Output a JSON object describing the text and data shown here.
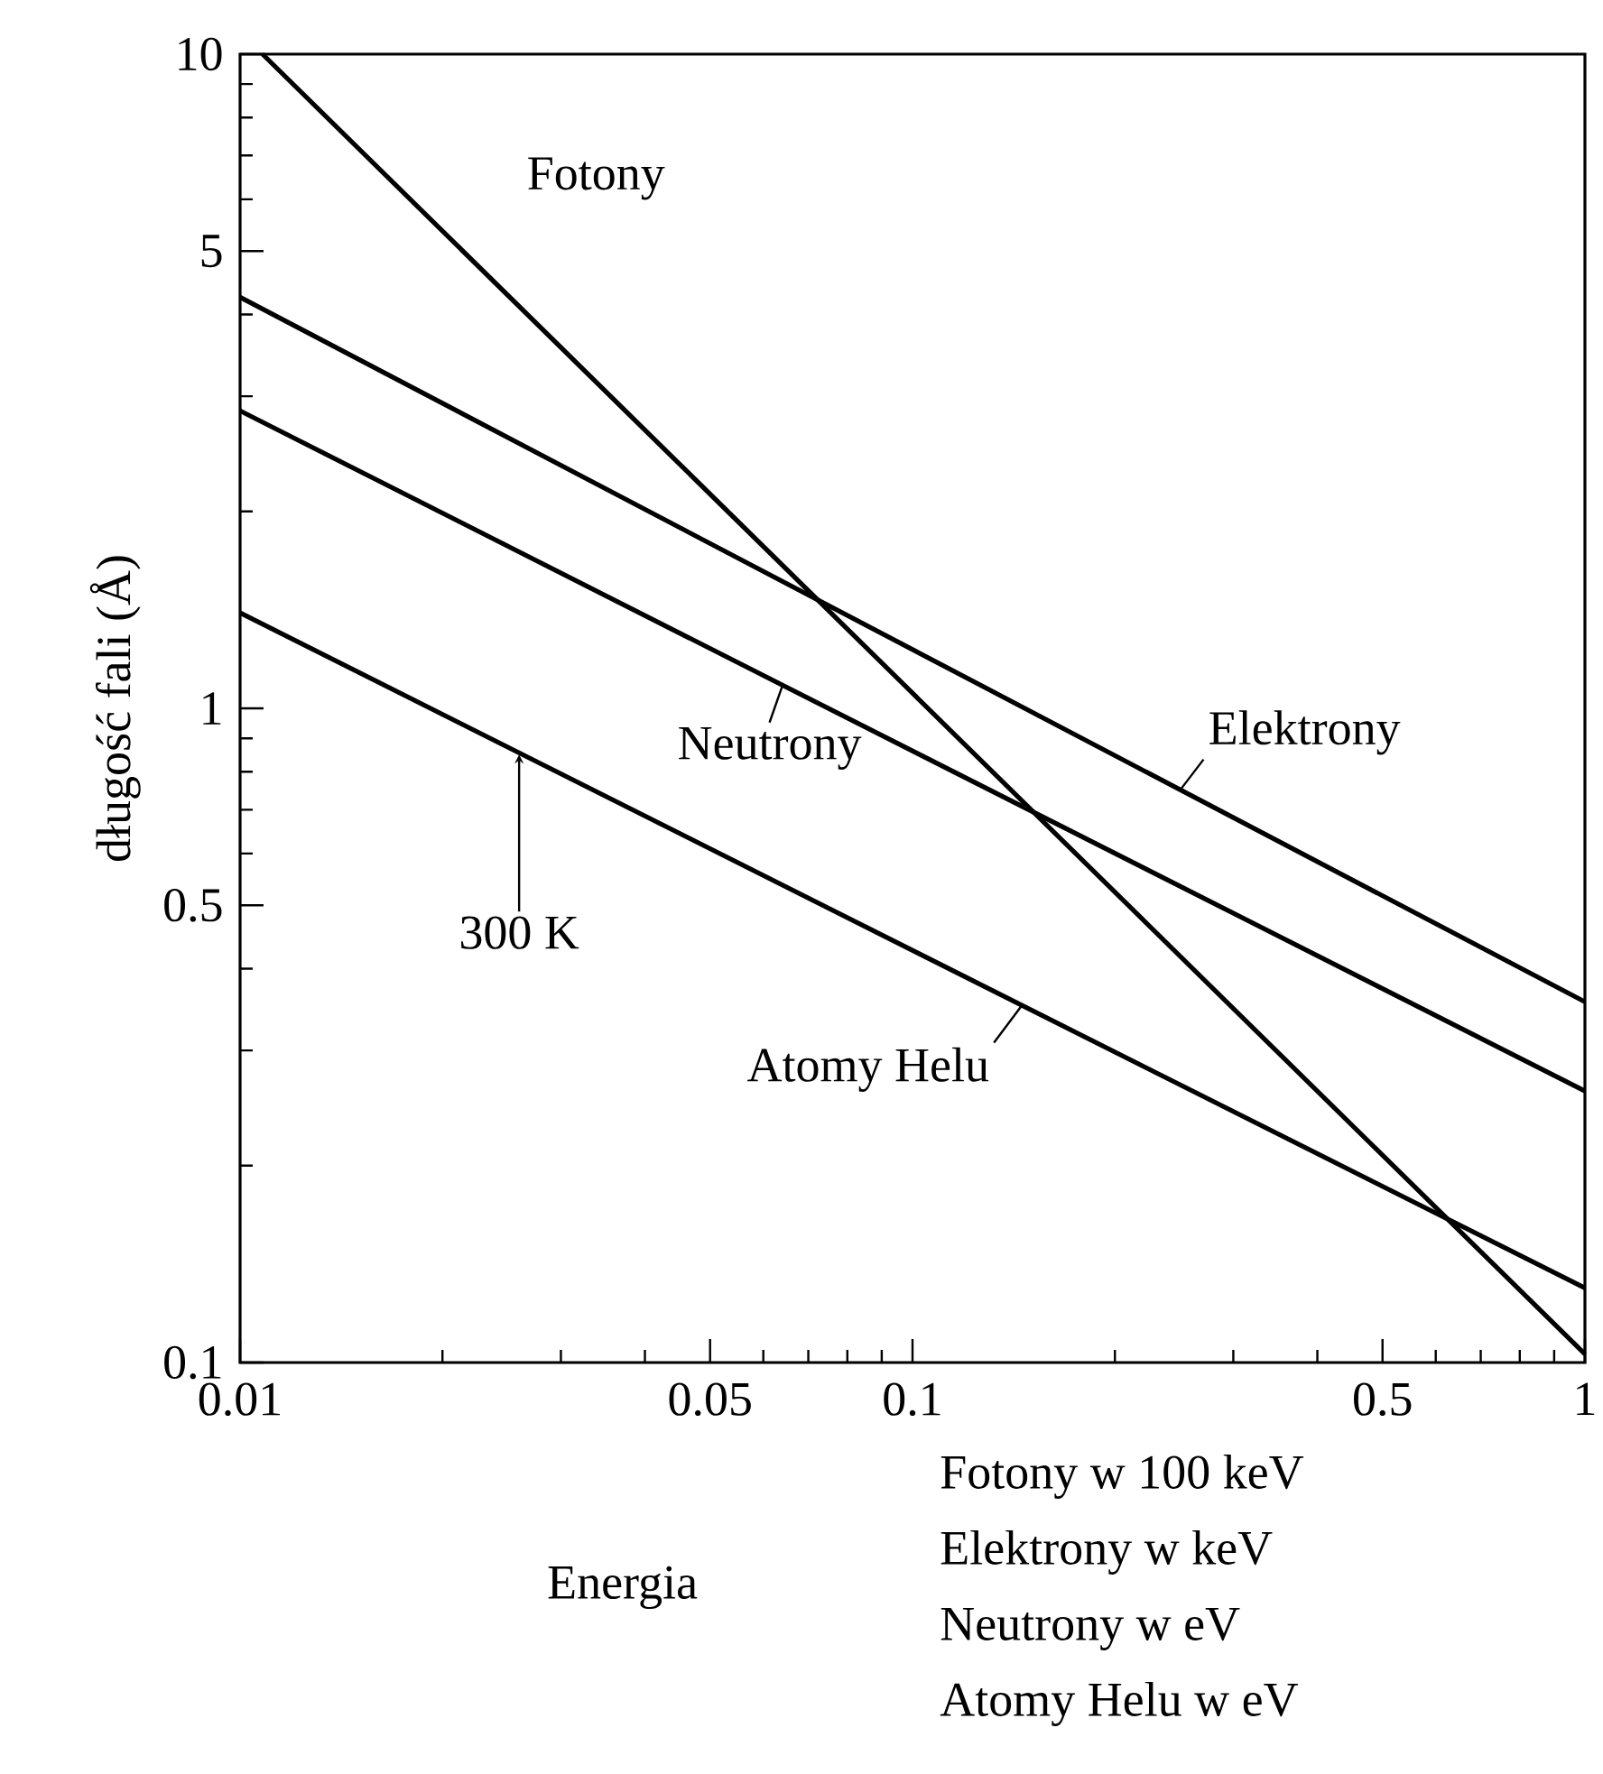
{
  "chart_data": {
    "type": "line",
    "xlabel": "Energia",
    "ylabel": "długość fali (Å)",
    "log": "xy",
    "grid": false,
    "marker": "none",
    "line_style": "solid",
    "xlim": [
      0.01,
      1
    ],
    "ylim": [
      0.1,
      10
    ],
    "xticks": [
      0.01,
      {
        "value": 0.02,
        "label": null
      },
      {
        "value": 0.03,
        "label": null
      },
      {
        "value": 0.04,
        "label": null
      },
      0.05,
      {
        "value": 0.06,
        "label": null
      },
      {
        "value": 0.07,
        "label": null
      },
      {
        "value": 0.08,
        "label": null
      },
      {
        "value": 0.09,
        "label": null
      },
      0.1,
      {
        "value": 0.2,
        "label": null
      },
      {
        "value": 0.3,
        "label": null
      },
      {
        "value": 0.4,
        "label": null
      },
      0.5,
      {
        "value": 0.6,
        "label": null
      },
      {
        "value": 0.7,
        "label": null
      },
      {
        "value": 0.8,
        "label": null
      },
      {
        "value": 0.9,
        "label": null
      },
      1
    ],
    "yticks": [
      0.1,
      {
        "value": 0.2,
        "label": null
      },
      {
        "value": 0.3,
        "label": null
      },
      {
        "value": 0.4,
        "label": null
      },
      0.5,
      {
        "value": 0.6,
        "label": null
      },
      {
        "value": 0.7,
        "label": null
      },
      {
        "value": 0.8,
        "label": null
      },
      {
        "value": 0.9,
        "label": null
      },
      1,
      {
        "value": 2,
        "label": null
      },
      {
        "value": 3,
        "label": null
      },
      {
        "value": 4,
        "label": null
      },
      5,
      {
        "value": 6,
        "label": null
      },
      {
        "value": 7,
        "label": null
      },
      {
        "value": 8,
        "label": null
      },
      {
        "value": 9,
        "label": null
      },
      10
    ],
    "series": [
      {
        "color": "#000000",
        "x": [
          0.0108,
          1
        ],
        "values": [
          10,
          0.103
        ]
      },
      {
        "color": "#000000",
        "x": [
          0.01,
          1
        ],
        "values": [
          4.25,
          0.356
        ]
      },
      {
        "color": "#000000",
        "x": [
          0.01,
          1
        ],
        "values": [
          2.85,
          0.26
        ]
      },
      {
        "color": "#000000",
        "x": [
          0.01,
          1
        ],
        "values": [
          1.4,
          0.13
        ]
      }
    ],
    "annotations": [
      {
        "text": "Fotony",
        "x": 0.02,
        "y": 5.4
      },
      {
        "text": "Elektrony",
        "x": 0.25,
        "y": 0.75
      },
      {
        "text": "Neutrony",
        "x": 0.064,
        "y": 1.08
      },
      {
        "text": "300 K",
        "x": 0.026,
        "y": 0.85
      },
      {
        "text": "Atomy Helu",
        "x": 0.145,
        "y": 0.35
      },
      "Fotony w 100 keV",
      "Elektrony w keV",
      "Neutrony w eV",
      "Atomy Helu w eV"
    ]
  }
}
